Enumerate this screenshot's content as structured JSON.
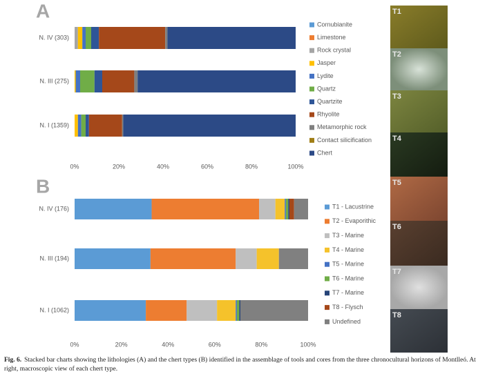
{
  "chart_data": [
    {
      "type": "stacked-bar-horizontal",
      "label": "A",
      "categories": [
        "N. IV (303)",
        "N. III (275)",
        "N. I (1359)"
      ],
      "series": [
        {
          "name": "Cornubianite",
          "color": "#5b9bd5",
          "values": [
            0,
            0,
            0
          ]
        },
        {
          "name": "Limestone",
          "color": "#ed7d31",
          "values": [
            0,
            0,
            0
          ]
        },
        {
          "name": "Rock crystal",
          "color": "#a5a5a5",
          "values": [
            1.5,
            0,
            0
          ]
        },
        {
          "name": "Jasper",
          "color": "#ffc000",
          "values": [
            2,
            0.5,
            1.5
          ]
        },
        {
          "name": "Lydite",
          "color": "#4472c4",
          "values": [
            1.5,
            2,
            1.5
          ]
        },
        {
          "name": "Quartz",
          "color": "#70ad47",
          "values": [
            2.5,
            6.5,
            2
          ]
        },
        {
          "name": "Quartzite",
          "color": "#2e5597",
          "values": [
            3.5,
            3.5,
            1.5
          ]
        },
        {
          "name": "Rhyolite",
          "color": "#a5481a",
          "values": [
            30,
            14.5,
            15
          ]
        },
        {
          "name": "Metamorphic rock",
          "color": "#7f7f7f",
          "values": [
            1,
            1.5,
            0.5
          ]
        },
        {
          "name": "Contact silicification",
          "color": "#a07e16",
          "values": [
            0,
            0,
            0
          ]
        },
        {
          "name": "Chert",
          "color": "#2c4a86",
          "values": [
            58,
            71.5,
            78
          ]
        }
      ],
      "xlim": [
        0,
        100
      ],
      "xticks": [
        {
          "value": 0,
          "label": "0%"
        },
        {
          "value": 20,
          "label": "20%"
        },
        {
          "value": 40,
          "label": "40%"
        },
        {
          "value": 60,
          "label": "60%"
        },
        {
          "value": 80,
          "label": "80%"
        },
        {
          "value": 100,
          "label": "100%"
        }
      ]
    },
    {
      "type": "stacked-bar-horizontal",
      "label": "B",
      "categories": [
        "N. IV (176)",
        "N. III (194)",
        "N. I (1062)"
      ],
      "series": [
        {
          "name": "T1 - Lacustrine",
          "color": "#5b9bd5",
          "values": [
            33,
            32.5,
            30.5
          ]
        },
        {
          "name": "T2 - Evaporithic",
          "color": "#ed7d31",
          "values": [
            46,
            36.5,
            17.5
          ]
        },
        {
          "name": "T3 - Marine",
          "color": "#bfbfbf",
          "values": [
            7,
            9,
            13
          ]
        },
        {
          "name": "T4 - Marine",
          "color": "#f5c22b",
          "values": [
            4,
            9.5,
            8
          ]
        },
        {
          "name": "T5 - Marine",
          "color": "#4472c4",
          "values": [
            0.5,
            0,
            0.5
          ]
        },
        {
          "name": "T6 - Marine",
          "color": "#70ad47",
          "values": [
            1,
            0,
            1
          ]
        },
        {
          "name": "T7 - Marine",
          "color": "#264478",
          "values": [
            0.5,
            0,
            0.5
          ]
        },
        {
          "name": "T8 - Flysch",
          "color": "#a5481a",
          "values": [
            2,
            0,
            0
          ]
        },
        {
          "name": "Undefined",
          "color": "#808080",
          "values": [
            6,
            12.5,
            29
          ]
        }
      ],
      "xlim": [
        0,
        100
      ],
      "xticks": [
        {
          "value": 0,
          "label": "0%"
        },
        {
          "value": 20,
          "label": "20%"
        },
        {
          "value": 40,
          "label": "40%"
        },
        {
          "value": 60,
          "label": "60%"
        },
        {
          "value": 80,
          "label": "80%"
        },
        {
          "value": 100,
          "label": "100%"
        }
      ]
    }
  ],
  "photos": [
    "T1",
    "T2",
    "T3",
    "T4",
    "T5",
    "T6",
    "T7",
    "T8"
  ],
  "caption": {
    "label": "Fig. 6.",
    "text": "Stacked bar charts showing the lithologies (A) and the chert types (B) identified in the assemblage of tools and cores from the three chronocultural horizons of Montlleó. At right, macroscopic view of each chert type."
  }
}
